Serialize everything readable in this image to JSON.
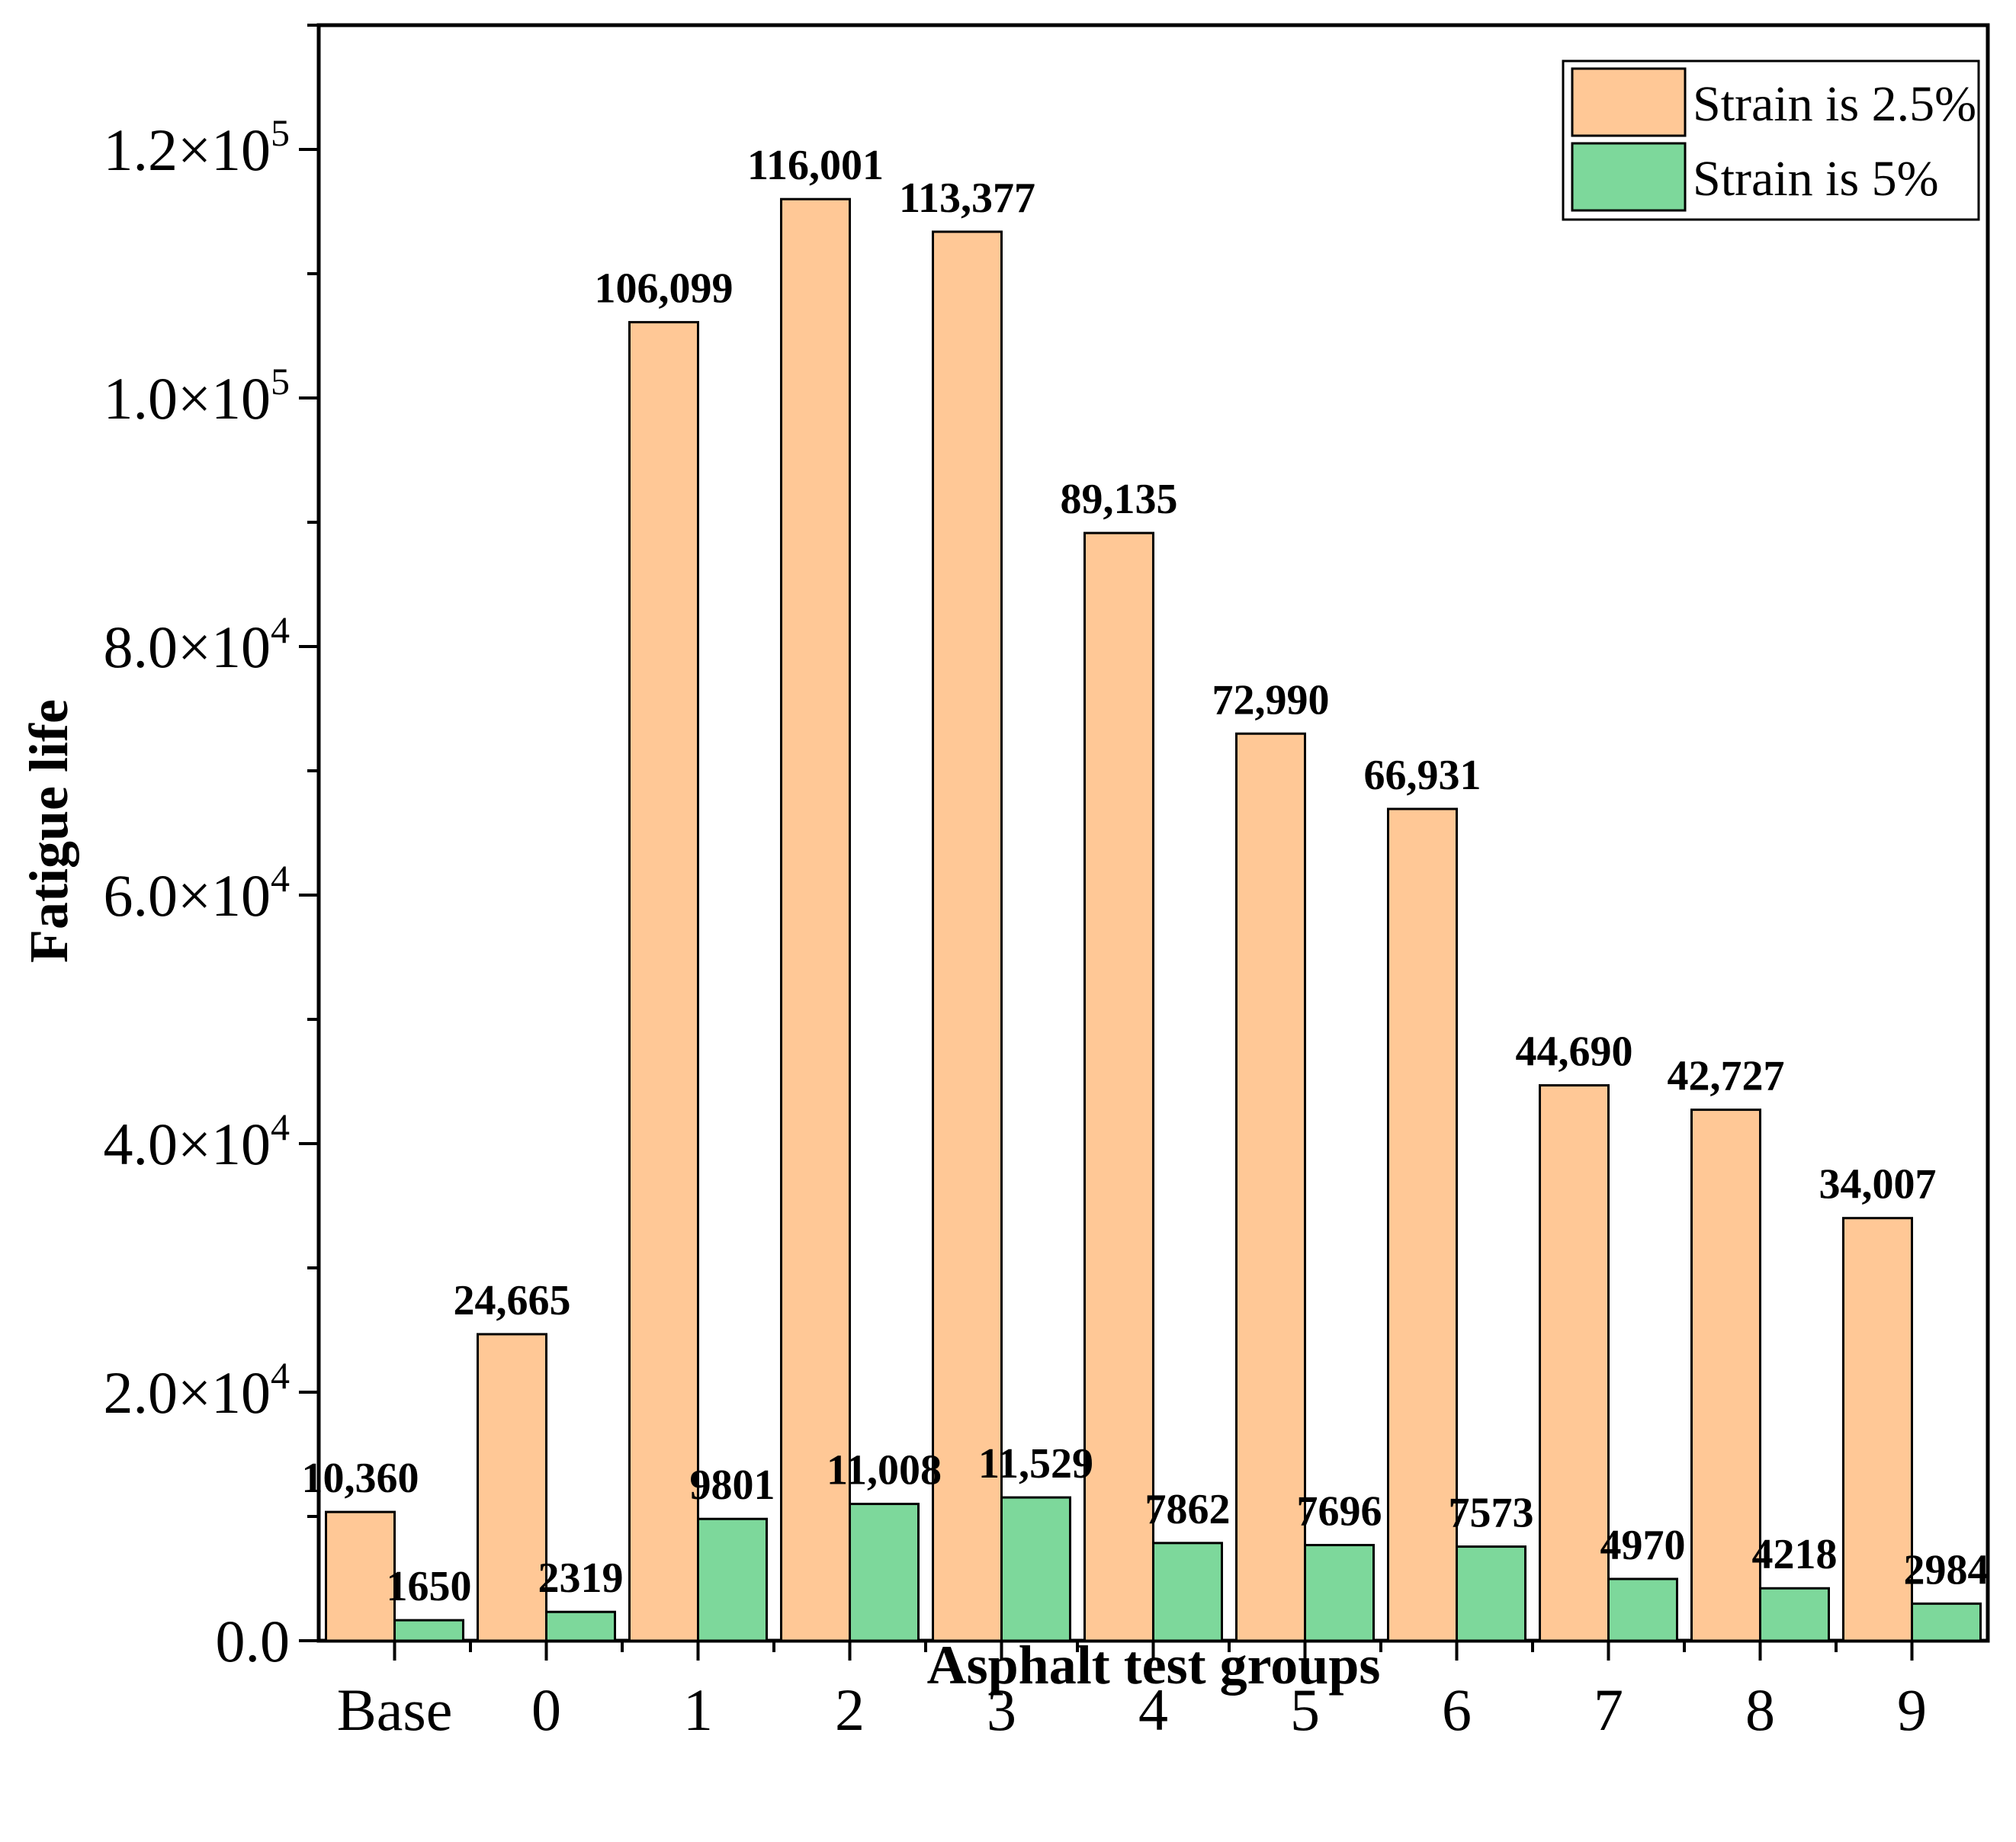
{
  "chart_data": {
    "type": "bar",
    "title": "",
    "xlabel": "Asphalt test groups",
    "ylabel": "Fatigue life",
    "ylim": [
      0,
      130000
    ],
    "grid": false,
    "legend_position": "top-right",
    "categories": [
      "Base",
      "0",
      "1",
      "2",
      "3",
      "4",
      "5",
      "6",
      "7",
      "8",
      "9"
    ],
    "y_ticks": [
      {
        "value": 0,
        "mantissa": "0.0",
        "exponent": ""
      },
      {
        "value": 20000,
        "mantissa": "2.0×10",
        "exponent": "4"
      },
      {
        "value": 40000,
        "mantissa": "4.0×10",
        "exponent": "4"
      },
      {
        "value": 60000,
        "mantissa": "6.0×10",
        "exponent": "4"
      },
      {
        "value": 80000,
        "mantissa": "8.0×10",
        "exponent": "4"
      },
      {
        "value": 100000,
        "mantissa": "1.0×10",
        "exponent": "5"
      },
      {
        "value": 120000,
        "mantissa": "1.2×10",
        "exponent": "5"
      }
    ],
    "y_minor_step": 10000,
    "series": [
      {
        "name": "Strain is 2.5%",
        "color": "#FFC896",
        "values": [
          10360,
          24665,
          106099,
          116001,
          113377,
          89135,
          72990,
          66931,
          44690,
          42727,
          34007
        ],
        "labels": [
          "10,360",
          "24,665",
          "106,099",
          "116,001",
          "113,377",
          "89,135",
          "72,990",
          "66,931",
          "44,690",
          "42,727",
          "34,007"
        ]
      },
      {
        "name": "Strain is 5%",
        "color": "#7DD89B",
        "values": [
          1650,
          2319,
          9801,
          11008,
          11529,
          7862,
          7696,
          7573,
          4970,
          4218,
          2984
        ],
        "labels": [
          "1650",
          "2319",
          "9801",
          "11,008",
          "11,529",
          "7862",
          "7696",
          "7573",
          "4970",
          "4218",
          "2984"
        ]
      }
    ]
  }
}
